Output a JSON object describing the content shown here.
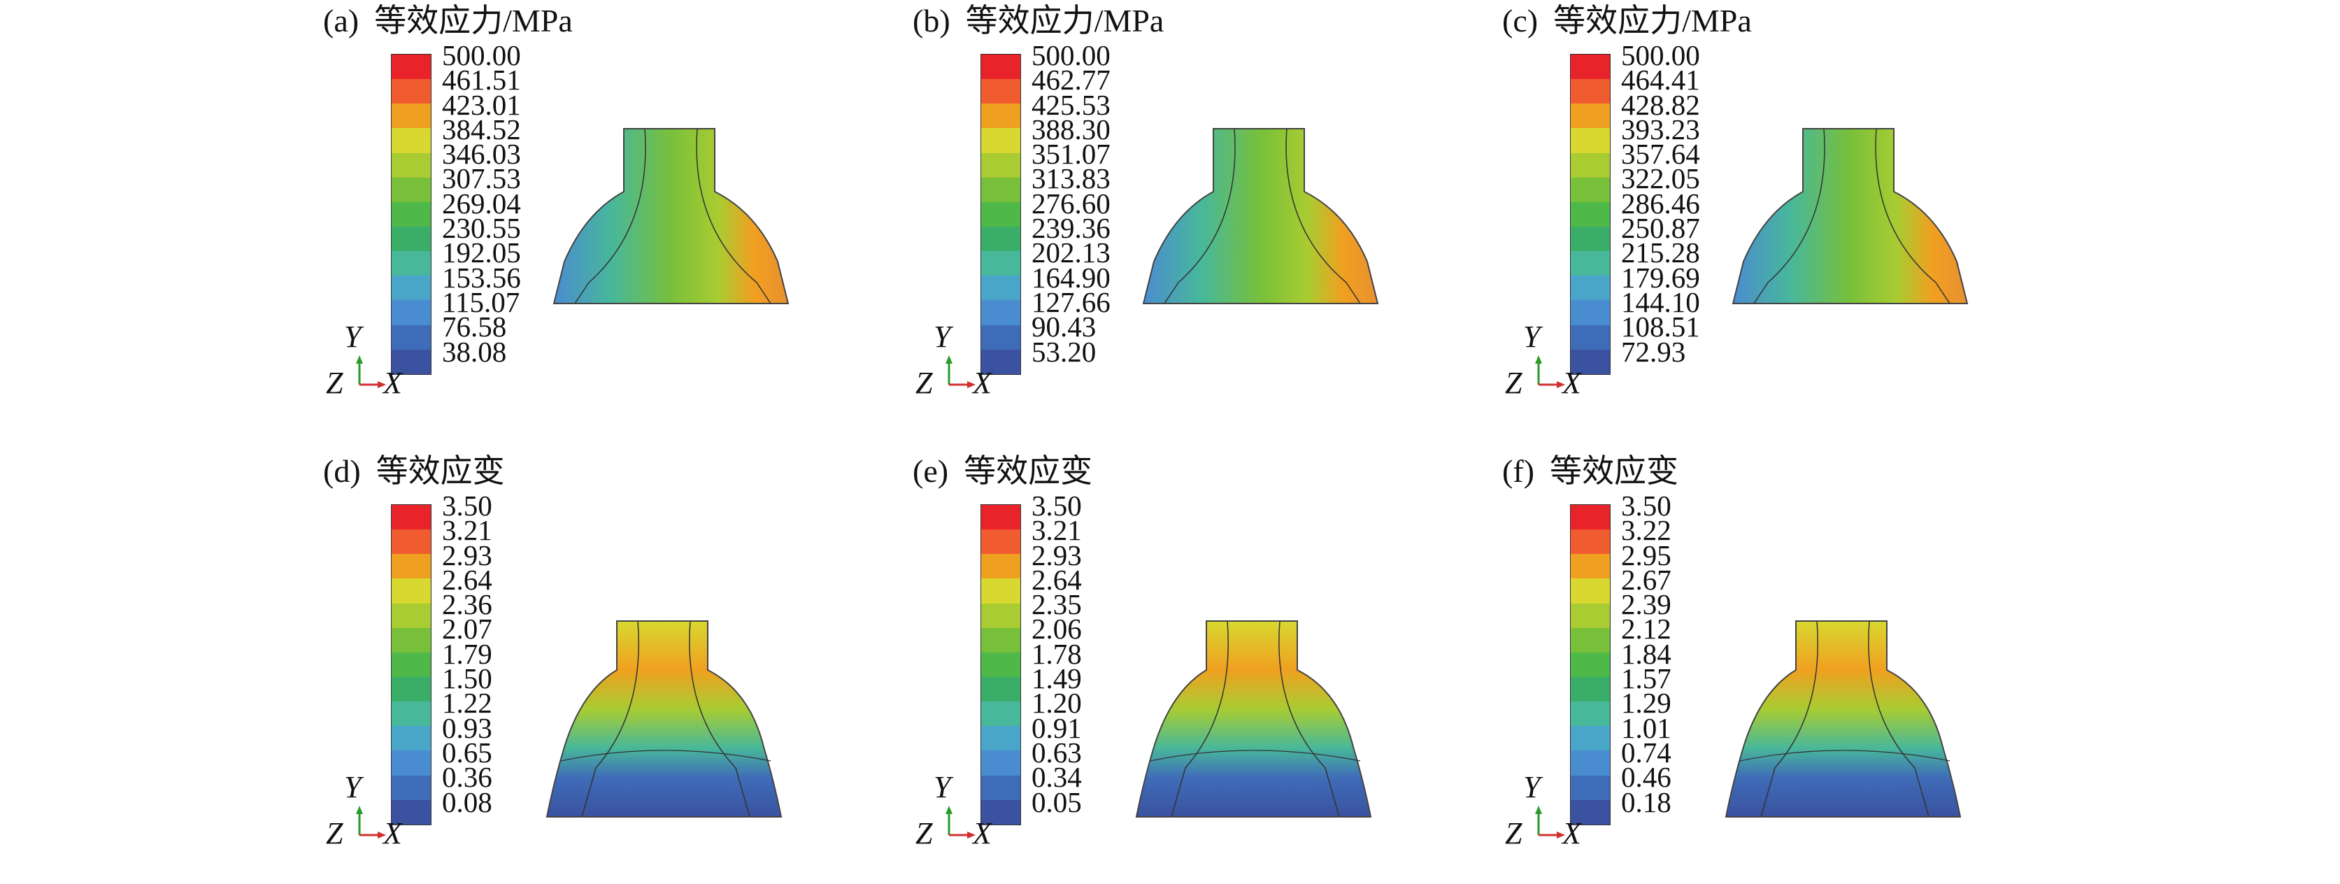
{
  "colors": {
    "scale": [
      "#e8232a",
      "#f05b2f",
      "#f0a020",
      "#d8d830",
      "#a8cc32",
      "#78c03a",
      "#4eb848",
      "#3aae68",
      "#48b89a",
      "#4aa6c8",
      "#4a8cd0",
      "#3f6cb8",
      "#3a52a0"
    ]
  },
  "panels": [
    {
      "tag": "(a)",
      "title": "等效应力/MPa",
      "labels": [
        "500.00",
        "461.51",
        "423.01",
        "384.52",
        "346.03",
        "307.53",
        "269.04",
        "230.55",
        "192.05",
        "153.56",
        "115.07",
        "76.58",
        "38.08"
      ],
      "axis_y": "Y",
      "axis_z": "Z",
      "axis_x": "X"
    },
    {
      "tag": "(b)",
      "title": "等效应力/MPa",
      "labels": [
        "500.00",
        "462.77",
        "425.53",
        "388.30",
        "351.07",
        "313.83",
        "276.60",
        "239.36",
        "202.13",
        "164.90",
        "127.66",
        "90.43",
        "53.20"
      ],
      "axis_y": "Y",
      "axis_z": "Z",
      "axis_x": "X"
    },
    {
      "tag": "(c)",
      "title": "等效应力/MPa",
      "labels": [
        "500.00",
        "464.41",
        "428.82",
        "393.23",
        "357.64",
        "322.05",
        "286.46",
        "250.87",
        "215.28",
        "179.69",
        "144.10",
        "108.51",
        "72.93"
      ],
      "axis_y": "Y",
      "axis_z": "Z",
      "axis_x": "X"
    },
    {
      "tag": "(d)",
      "title": "等效应变",
      "labels": [
        "3.50",
        "3.21",
        "2.93",
        "2.64",
        "2.36",
        "2.07",
        "1.79",
        "1.50",
        "1.22",
        "0.93",
        "0.65",
        "0.36",
        "0.08"
      ],
      "axis_y": "Y",
      "axis_z": "Z",
      "axis_x": "X"
    },
    {
      "tag": "(e)",
      "title": "等效应变",
      "labels": [
        "3.50",
        "3.21",
        "2.93",
        "2.64",
        "2.35",
        "2.06",
        "1.78",
        "1.49",
        "1.20",
        "0.91",
        "0.63",
        "0.34",
        "0.05"
      ],
      "axis_y": "Y",
      "axis_z": "Z",
      "axis_x": "X"
    },
    {
      "tag": "(f)",
      "title": "等效应变",
      "labels": [
        "3.50",
        "3.22",
        "2.95",
        "2.67",
        "2.39",
        "2.12",
        "1.84",
        "1.57",
        "1.29",
        "1.01",
        "0.74",
        "0.46",
        "0.18"
      ],
      "axis_y": "Y",
      "axis_z": "Z",
      "axis_x": "X"
    }
  ]
}
